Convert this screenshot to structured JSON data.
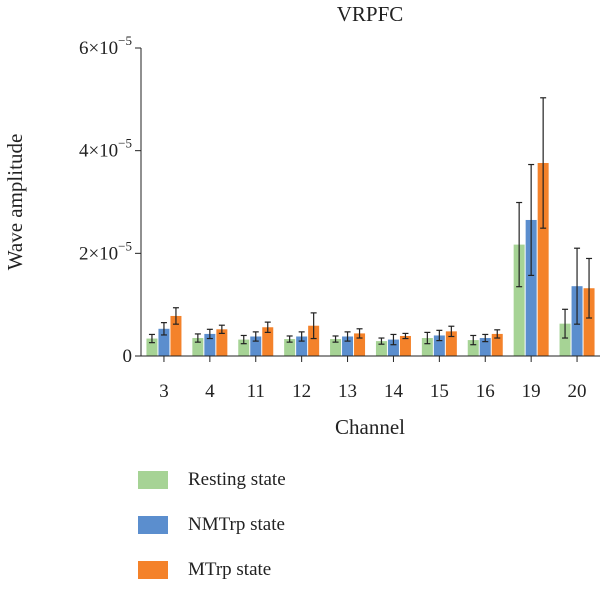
{
  "chart_data": {
    "type": "bar",
    "title": "VRPFC",
    "xlabel": "Channel",
    "ylabel": "Wave amplitude",
    "ylim": [
      0,
      6e-05
    ],
    "yticks": [
      0,
      2e-05,
      4e-05,
      6e-05
    ],
    "ytick_labels": [
      {
        "mant": "0",
        "exp": ""
      },
      {
        "mant": "2×10",
        "exp": "−5"
      },
      {
        "mant": "4×10",
        "exp": "−5"
      },
      {
        "mant": "6×10",
        "exp": "−5"
      }
    ],
    "categories": [
      "3",
      "4",
      "11",
      "12",
      "13",
      "14",
      "15",
      "16",
      "19",
      "20"
    ],
    "series": [
      {
        "name": "Resting state",
        "color": "#a6d395",
        "values": [
          3.4e-06,
          3.5e-06,
          3.2e-06,
          3.3e-06,
          3.3e-06,
          2.9e-06,
          3.5e-06,
          3.1e-06,
          2.17e-05,
          6.3e-06
        ],
        "errors": [
          8e-07,
          8e-07,
          8e-07,
          6e-07,
          6e-07,
          6e-07,
          1.1e-06,
          9e-07,
          8.2e-06,
          2.8e-06
        ]
      },
      {
        "name": "NMTrp state",
        "color": "#5b8ece",
        "values": [
          5.3e-06,
          4.3e-06,
          3.8e-06,
          3.8e-06,
          3.8e-06,
          3.2e-06,
          4e-06,
          3.5e-06,
          2.65e-05,
          1.36e-05
        ],
        "errors": [
          1.2e-06,
          9e-07,
          9e-07,
          9e-07,
          9e-07,
          1e-06,
          1e-06,
          7e-07,
          1.08e-05,
          7.4e-06
        ]
      },
      {
        "name": "MTrp state",
        "color": "#f4822a",
        "values": [
          7.8e-06,
          5.2e-06,
          5.6e-06,
          5.9e-06,
          4.4e-06,
          3.9e-06,
          4.8e-06,
          4.3e-06,
          3.76e-05,
          1.32e-05
        ],
        "errors": [
          1.6e-06,
          8e-07,
          1e-06,
          2.5e-06,
          9e-07,
          5e-07,
          1e-06,
          8e-07,
          1.27e-05,
          5.8e-06
        ]
      }
    ],
    "legend_position": "bottom-left"
  }
}
